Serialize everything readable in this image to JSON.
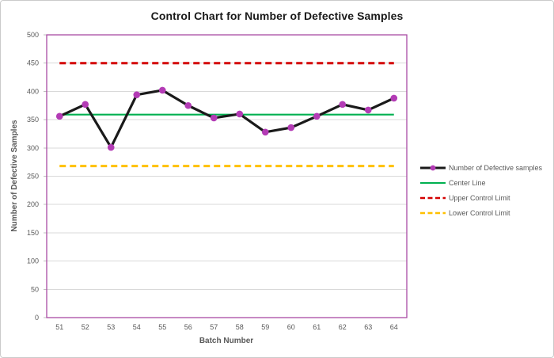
{
  "chart_data": {
    "type": "line",
    "title": "Control Chart for Number of Defective Samples",
    "xlabel": "Batch Number",
    "ylabel": "Number of Defective Samples",
    "categories": [
      51,
      52,
      53,
      54,
      55,
      56,
      57,
      58,
      59,
      60,
      61,
      62,
      63,
      64
    ],
    "yticks": [
      0,
      50,
      100,
      150,
      200,
      250,
      300,
      350,
      400,
      450,
      500
    ],
    "ylim": [
      0,
      500
    ],
    "grid": true,
    "legend_position": "right",
    "series": [
      {
        "name": "Number of Defective samples",
        "style": "line-marker",
        "color": "#1a1a1a",
        "marker_color": "#b33bb5",
        "values": [
          356,
          377,
          301,
          394,
          402,
          375,
          353,
          360,
          328,
          336,
          356,
          377,
          367,
          388
        ]
      },
      {
        "name": "Center Line",
        "style": "solid",
        "color": "#00b050",
        "value": 359
      },
      {
        "name": "Upper Control Limit",
        "style": "dashed",
        "color": "#d40000",
        "value": 450
      },
      {
        "name": "Lower Control Limit",
        "style": "dashed",
        "color": "#ffc000",
        "value": 268
      }
    ],
    "colors": {
      "plot_border": "#a94ca3",
      "gridline": "#d9d9d9",
      "tick": "#bfbfbf",
      "axis_text": "#595959",
      "title_text": "#1a1a1a"
    }
  }
}
